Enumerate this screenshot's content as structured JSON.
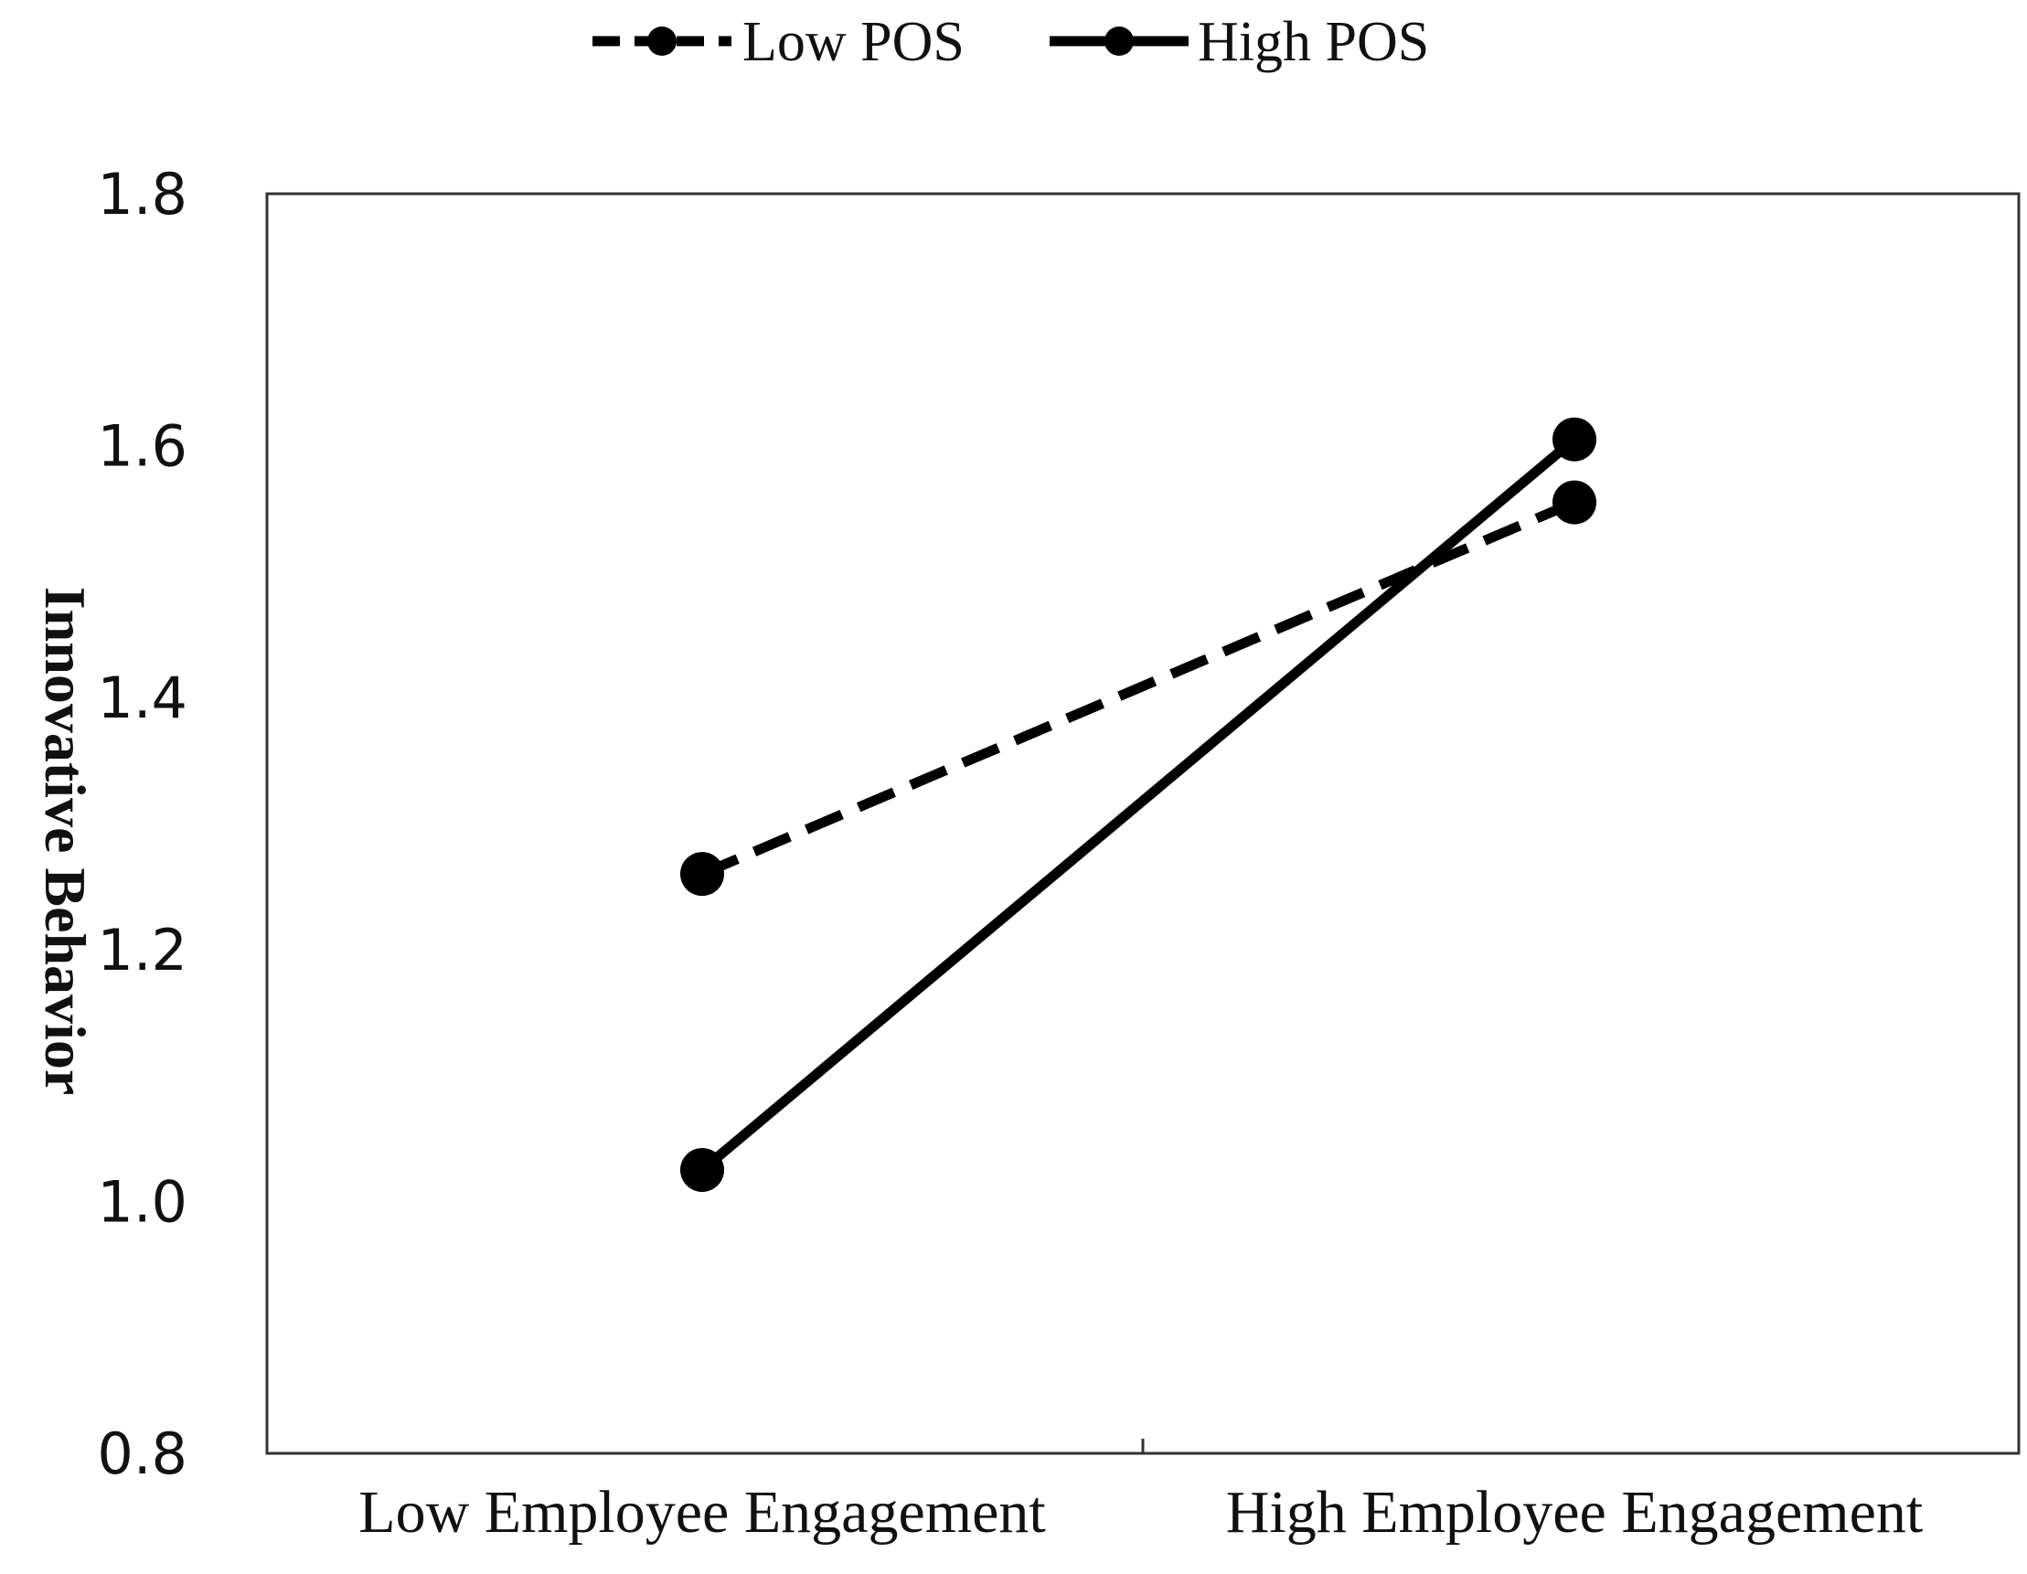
{
  "chart_data": {
    "type": "line",
    "title": "",
    "xlabel": "",
    "ylabel": "Innovative Behavior",
    "categories": [
      "Low Employee Engagement",
      "High Employee Engagement"
    ],
    "series": [
      {
        "name": "Low POS",
        "values": [
          1.26,
          1.555
        ],
        "line_style": "dashed",
        "color": "#000000"
      },
      {
        "name": "High POS",
        "values": [
          1.025,
          1.605
        ],
        "line_style": "solid",
        "color": "#000000"
      }
    ],
    "ylim": [
      0.8,
      1.8
    ],
    "yticks": [
      "0.8",
      "1.0",
      "1.2",
      "1.4",
      "1.6",
      "1.8"
    ],
    "grid": false,
    "legend_position": "top-center"
  }
}
